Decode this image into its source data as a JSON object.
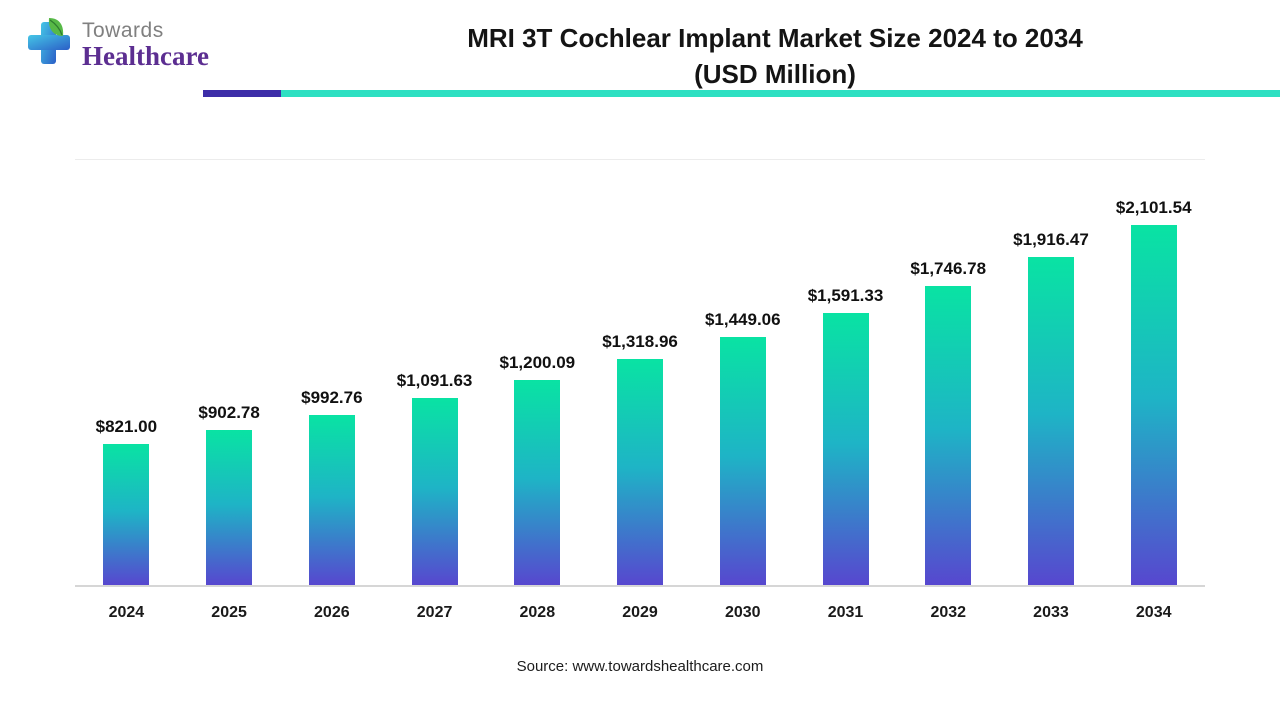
{
  "header": {
    "logo_top": "Towards",
    "logo_bottom": "Healthcare",
    "title_line1": "MRI 3T Cochlear Implant Market Size 2024 to 2034",
    "title_line2": "(USD Million)"
  },
  "chart_data": {
    "type": "bar",
    "title": "MRI 3T Cochlear Implant Market Size 2024 to 2034 (USD Million)",
    "categories": [
      "2024",
      "2025",
      "2026",
      "2027",
      "2028",
      "2029",
      "2030",
      "2031",
      "2032",
      "2033",
      "2034"
    ],
    "values": [
      821.0,
      902.78,
      992.76,
      1091.63,
      1200.09,
      1318.96,
      1449.06,
      1591.33,
      1746.78,
      1916.47,
      2101.54
    ],
    "labels": [
      "$821.00",
      "$902.78",
      "$992.76",
      "$1,091.63",
      "$1,200.09",
      "$1,318.96",
      "$1,449.06",
      "$1,591.33",
      "$1,746.78",
      "$1,916.47",
      "$2,101.54"
    ],
    "xlabel": "",
    "ylabel": "",
    "ylim": [
      0,
      2500
    ],
    "grid": "baseline-and-top-only",
    "legend": "none"
  },
  "footer": {
    "source": "Source: www.towardshealthcare.com"
  },
  "colors": {
    "accent_purple": "#3D2DA8",
    "accent_teal": "#2EE0C2",
    "bar_gradient_top": "#09E3A3",
    "bar_gradient_mid": "#1EB4C6",
    "bar_gradient_bottom": "#5747CF",
    "logo_purple": "#5C2E91",
    "logo_gray": "#808080"
  }
}
